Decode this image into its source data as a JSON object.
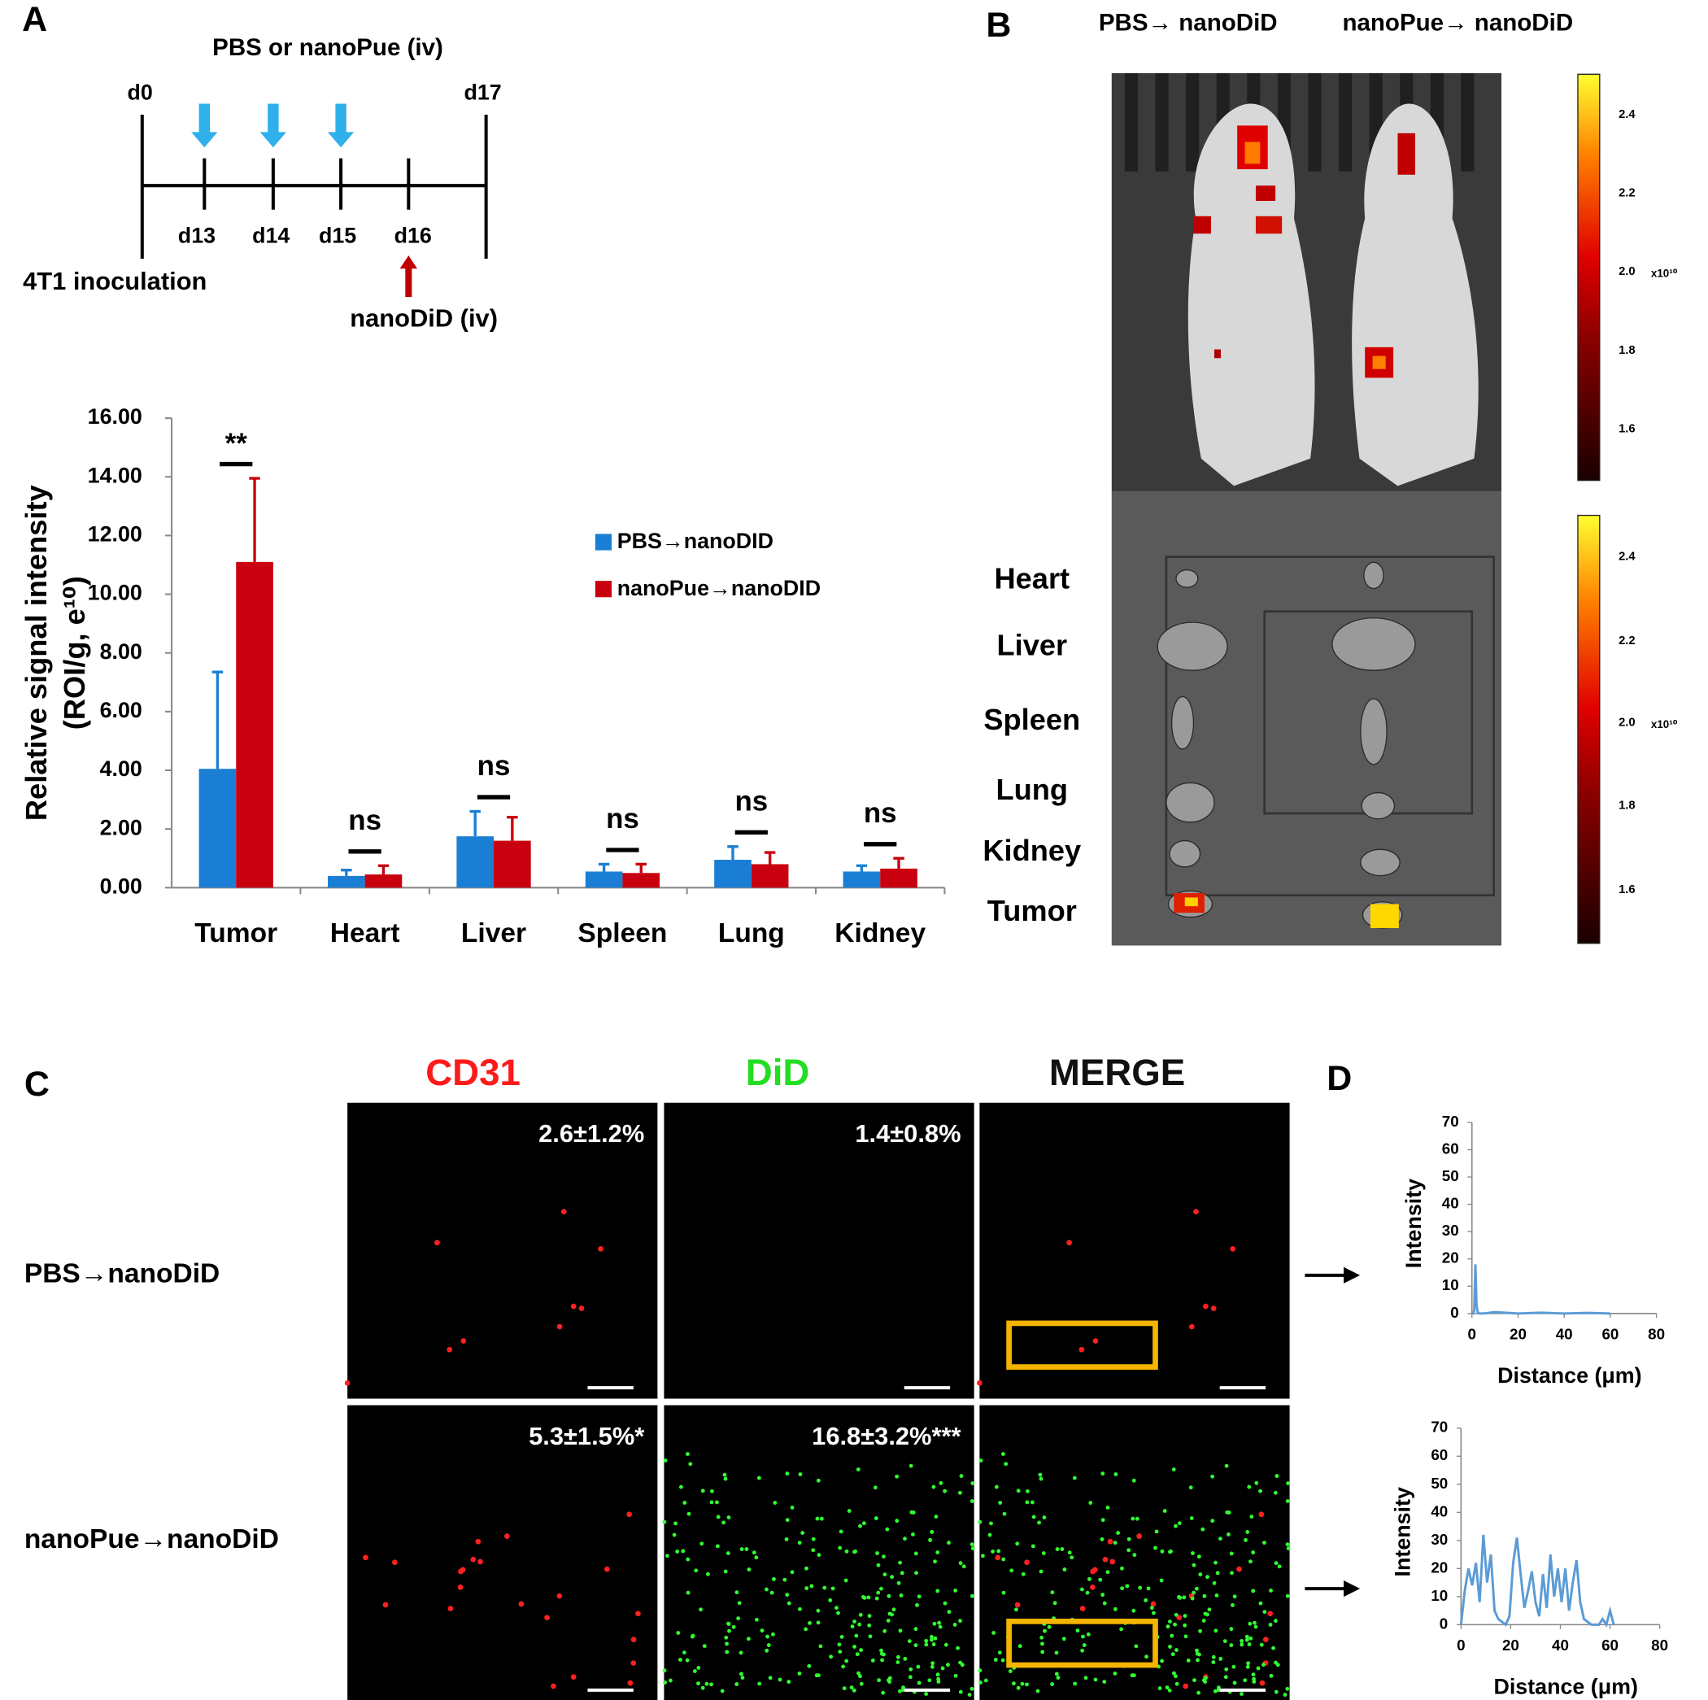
{
  "panel_labels": [
    "A",
    "B",
    "C",
    "D"
  ],
  "timeline": {
    "title": "PBS or nanoPue (iv)",
    "days": [
      "d0",
      "d13",
      "d14",
      "d15",
      "d16",
      "d17"
    ],
    "start_label": "4T1 inoculation",
    "injection_label": "nanoDiD (iv)"
  },
  "imaging": {
    "columns": [
      "PBS→ nanoDiD",
      "nanoPue→ nanoDiD"
    ],
    "organs": [
      "Heart",
      "Liver",
      "Spleen",
      "Lung",
      "Kidney",
      "Tumor"
    ],
    "colorbar_labels": [
      "2.4",
      "2.2",
      "2.0",
      "1.8",
      "1.6"
    ],
    "colorbar_unit": "x10¹⁰"
  },
  "microscopy": {
    "columns": [
      "CD31",
      "DiD",
      "MERGE"
    ],
    "rows": [
      "PBS→nanoDiD",
      "nanoPue→nanoDiD"
    ],
    "percentages": [
      [
        "2.6±1.2%",
        "1.4±0.8%"
      ],
      [
        "5.3±1.5%*",
        "16.8±3.2%***"
      ]
    ]
  },
  "chart_data": [
    {
      "type": "bar",
      "y_label": [
        "Relative signal intensity",
        "(ROI/g, e¹⁰)"
      ],
      "categories": [
        "Tumor",
        "Heart",
        "Liver",
        "Spleen",
        "Lung",
        "Kidney"
      ],
      "series": [
        {
          "name": "PBS→nanoDID",
          "color": "#1a7fd4",
          "values": [
            4.05,
            0.4,
            1.75,
            0.55,
            0.95,
            0.55
          ],
          "errors": [
            3.3,
            0.2,
            0.85,
            0.25,
            0.45,
            0.2
          ]
        },
        {
          "name": "nanoPue→nanoDID",
          "color": "#c8000f",
          "values": [
            11.1,
            0.45,
            1.6,
            0.5,
            0.8,
            0.65
          ],
          "errors": [
            2.85,
            0.3,
            0.8,
            0.3,
            0.4,
            0.35
          ]
        }
      ],
      "annotations": [
        "**",
        "ns",
        "ns",
        "ns",
        "ns",
        "ns"
      ],
      "ylim": [
        0,
        16
      ],
      "yticks": [
        {
          "value": 0,
          "label": "0.00"
        },
        {
          "value": 2,
          "label": "2.00"
        },
        {
          "value": 4,
          "label": "4.00"
        },
        {
          "value": 6,
          "label": "6.00"
        },
        {
          "value": 8,
          "label": "8.00"
        },
        {
          "value": 10,
          "label": "10.00"
        },
        {
          "value": 12,
          "label": "12.00"
        },
        {
          "value": 14,
          "label": "14.00"
        },
        {
          "value": 16,
          "label": "16.00"
        }
      ]
    },
    {
      "type": "line",
      "x_label": "Distance (μm)",
      "y_label": "Intensity",
      "x": [
        0,
        0.5,
        1,
        1.5,
        2,
        2.5,
        3,
        5,
        10,
        20,
        30,
        40,
        50,
        60
      ],
      "series": [
        {
          "color": "#5b9bd5",
          "values": [
            0,
            0,
            1,
            18,
            3,
            0.5,
            0,
            0,
            0.5,
            0,
            0.3,
            0,
            0.2,
            0
          ]
        }
      ],
      "xlim": [
        0,
        80
      ],
      "xticks": [
        0,
        20,
        40,
        60,
        80
      ],
      "ylim": [
        0,
        70
      ],
      "yticks": [
        0,
        10,
        20,
        30,
        40,
        50,
        60,
        70
      ]
    },
    {
      "type": "line",
      "x_label": "Distance (μm)",
      "y_label": "Intensity",
      "x": [
        0,
        1.5,
        3,
        4.5,
        6,
        7.5,
        9,
        10.5,
        12,
        13.5,
        15,
        16.5,
        18,
        19.5,
        21,
        22.5,
        24,
        25.5,
        27,
        28.5,
        30,
        31.5,
        33,
        34.5,
        36,
        37.5,
        39,
        40.5,
        42,
        43.5,
        45,
        46.5,
        48,
        49.5,
        51,
        52.5,
        54,
        55.5,
        57,
        58.5,
        60,
        61.5
      ],
      "series": [
        {
          "color": "#5b9bd5",
          "values": [
            0,
            12,
            20,
            14,
            22,
            8,
            32,
            15,
            25,
            5,
            2,
            1,
            0,
            3,
            22,
            31,
            18,
            6,
            12,
            19,
            8,
            3,
            18,
            6,
            25,
            10,
            20,
            8,
            20,
            5,
            15,
            23,
            8,
            2,
            1,
            0,
            0,
            0,
            2,
            0,
            5,
            0
          ]
        }
      ],
      "xlim": [
        0,
        80
      ],
      "xticks": [
        0,
        20,
        40,
        60,
        80
      ],
      "ylim": [
        0,
        70
      ],
      "yticks": [
        0,
        10,
        20,
        30,
        40,
        50,
        60,
        70
      ]
    }
  ]
}
